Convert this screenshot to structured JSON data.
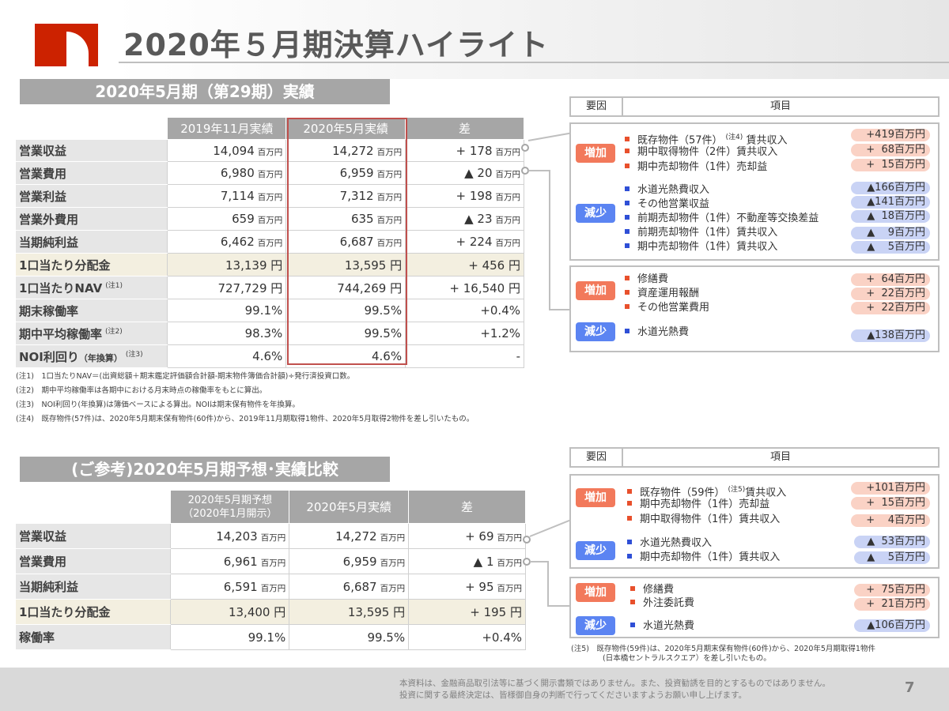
{
  "page": {
    "title": "2020年５月期決算ハイライト",
    "page_number": "7",
    "disclaimer_line1": "本資料は、金融商品取引法等に基づく開示書類ではありません。また、投資勧誘を目的とするものではありません。",
    "disclaimer_line2": "投資に関する最終決定は、皆様御自身の判断で行ってくださいますようお願い申し上げます。",
    "logo_colors": [
      "#cc2200",
      "#ffffff"
    ]
  },
  "section1": {
    "header": "2020年5月期（第29期）実績",
    "columns": [
      "2019年11月実績",
      "2020年5月実績",
      "差"
    ],
    "rows": [
      {
        "label": "営業収益",
        "note": "",
        "v1": "14,094",
        "u1": "百万円",
        "v2": "14,272",
        "u2": "百万円",
        "diff": "+ 178",
        "ud": "百万円"
      },
      {
        "label": "営業費用",
        "note": "",
        "v1": "6,980",
        "u1": "百万円",
        "v2": "6,959",
        "u2": "百万円",
        "diff": "▲ 20",
        "ud": "百万円"
      },
      {
        "label": "営業利益",
        "note": "",
        "v1": "7,114",
        "u1": "百万円",
        "v2": "7,312",
        "u2": "百万円",
        "diff": "+ 198",
        "ud": "百万円"
      },
      {
        "label": "営業外費用",
        "note": "",
        "v1": "659",
        "u1": "百万円",
        "v2": "635",
        "u2": "百万円",
        "diff": "▲ 23",
        "ud": "百万円"
      },
      {
        "label": "当期純利益",
        "note": "",
        "v1": "6,462",
        "u1": "百万円",
        "v2": "6,687",
        "u2": "百万円",
        "diff": "+ 224",
        "ud": "百万円"
      },
      {
        "label": "1口当たり分配金",
        "note": "",
        "v1": "13,139 円",
        "u1": "",
        "v2": "13,595 円",
        "u2": "",
        "diff": "+ 456 円",
        "ud": ""
      },
      {
        "label": "1口当たりNAV",
        "note": "(注1)",
        "v1": "727,729 円",
        "u1": "",
        "v2": "744,269 円",
        "u2": "",
        "diff": "+ 16,540 円",
        "ud": ""
      },
      {
        "label": "期末稼働率",
        "note": "",
        "v1": "99.1%",
        "u1": "",
        "v2": "99.5%",
        "u2": "",
        "diff": "+0.4%",
        "ud": ""
      },
      {
        "label": "期中平均稼働率",
        "note": "(注2)",
        "v1": "98.3%",
        "u1": "",
        "v2": "99.5%",
        "u2": "",
        "diff": "+1.2%",
        "ud": ""
      },
      {
        "label": "NOI利回り",
        "label_small": "（年換算）",
        "note": "(注3)",
        "v1": "4.6%",
        "u1": "",
        "v2": "4.6%",
        "u2": "",
        "diff": "-",
        "ud": ""
      }
    ],
    "notes": [
      "(注1)　1口当たりNAV＝(出資総額＋期末鑑定評価額合計額-期末物件簿価合計額)÷発行済投資口数。",
      "(注2)　期中平均稼働率は各期中における月末時点の稼働率をもとに算出。",
      "(注3)　NOI利回り(年換算)は簿価ベースによる算出。NOIは期末保有物件を年換算。",
      "(注4)　既存物件(57件)は、2020年5月期末保有物件(60件)から、2019年11月期取得1物件、2020年5月取得2物件を差し引いたもの。"
    ],
    "factors": {
      "head_col1": "要因",
      "head_col2": "項目",
      "revenue": {
        "inc_label": "増加",
        "inc_items": [
          {
            "text": "既存物件（57件）",
            "note": "(注4)",
            "text2": "賃共収入",
            "amount": "+419百万円"
          },
          {
            "text": "期中取得物件（2件）賃共収入",
            "note": "",
            "text2": "",
            "amount": "+  68百万円"
          },
          {
            "text": "期中売却物件（1件）売却益",
            "note": "",
            "text2": "",
            "amount": "+  15百万円"
          }
        ],
        "dec_label": "減少",
        "dec_items": [
          {
            "text": "水道光熱費収入",
            "amount": "▲166百万円"
          },
          {
            "text": "その他営業収益",
            "amount": "▲141百万円"
          },
          {
            "text": "前期売却物件（1件）不動産等交換差益",
            "amount": "▲  18百万円"
          },
          {
            "text": "前期売却物件（1件）賃共収入",
            "amount": "▲    9百万円"
          },
          {
            "text": "期中売却物件（1件）賃共収入",
            "amount": "▲    5百万円"
          }
        ]
      },
      "expense": {
        "inc_label": "増加",
        "inc_items": [
          {
            "text": "修繕費",
            "amount": "+  64百万円"
          },
          {
            "text": "資産運用報酬",
            "amount": "+  22百万円"
          },
          {
            "text": "その他営業費用",
            "amount": "+  22百万円"
          }
        ],
        "dec_label": "減少",
        "dec_items": [
          {
            "text": "水道光熱費",
            "amount": "▲138百万円"
          }
        ]
      }
    }
  },
  "section2": {
    "header": "(ご参考)2020年5月期予想･実績比較",
    "col1_line1": "2020年5月期予想",
    "col1_line2": "（2020年1月開示）",
    "col2": "2020年5月実績",
    "col3": "差",
    "rows": [
      {
        "label": "営業収益",
        "v1": "14,203",
        "u1": "百万円",
        "v2": "14,272",
        "u2": "百万円",
        "diff": "+ 69",
        "ud": "百万円"
      },
      {
        "label": "営業費用",
        "v1": "6,961",
        "u1": "百万円",
        "v2": "6,959",
        "u2": "百万円",
        "diff": "▲ 1",
        "ud": "百万円"
      },
      {
        "label": "当期純利益",
        "v1": "6,591",
        "u1": "百万円",
        "v2": "6,687",
        "u2": "百万円",
        "diff": "+ 95",
        "ud": "百万円"
      },
      {
        "label": "1口当たり分配金",
        "v1": "13,400 円",
        "u1": "",
        "v2": "13,595 円",
        "u2": "",
        "diff": "+ 195 円",
        "ud": ""
      },
      {
        "label": "稼働率",
        "v1": "99.1%",
        "u1": "",
        "v2": "99.5%",
        "u2": "",
        "diff": "+0.4%",
        "ud": ""
      }
    ],
    "factors": {
      "head_col1": "要因",
      "head_col2": "項目",
      "revenue": {
        "inc_label": "増加",
        "inc_items": [
          {
            "text": "既存物件（59件）",
            "note": "(注5)",
            "text2": "賃共収入",
            "amount": "+101百万円"
          },
          {
            "text": "期中売却物件（1件）売却益",
            "note": "",
            "text2": "",
            "amount": "+  15百万円"
          },
          {
            "text": "期中取得物件（1件）賃共収入",
            "note": "",
            "text2": "",
            "amount": "+    4百万円"
          }
        ],
        "dec_label": "減少",
        "dec_items": [
          {
            "text": "水道光熱費収入",
            "amount": "▲  53百万円"
          },
          {
            "text": "期中売却物件（1件）賃共収入",
            "amount": "▲    5百万円"
          }
        ]
      },
      "expense": {
        "inc_label": "増加",
        "inc_items": [
          {
            "text": "修繕費",
            "amount": "+  75百万円"
          },
          {
            "text": "外注委託費",
            "amount": "+  21百万円"
          }
        ],
        "dec_label": "減少",
        "dec_items": [
          {
            "text": "水道光熱費",
            "amount": "▲106百万円"
          }
        ]
      },
      "note5_line1": "(注5)　既存物件(59件)は、2020年5月期末保有物件(60件)から、2020年5月期取得1物件",
      "note5_line2": "(日本橋セントラルスクエア）を差し引いたもの。"
    }
  }
}
